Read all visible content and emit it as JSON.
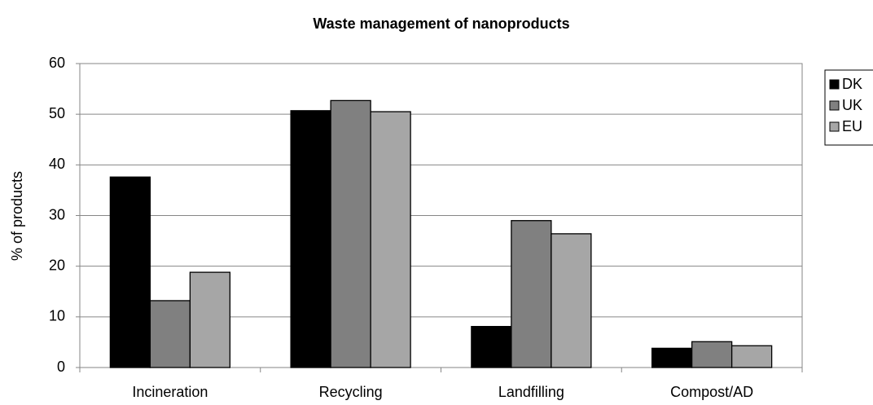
{
  "chart_data": {
    "type": "bar",
    "title": "Waste management of nanoproducts",
    "y_label": "% of products",
    "categories": [
      "Incineration",
      "Recycling",
      "Landfilling",
      "Compost/AD"
    ],
    "series": [
      {
        "name": "DK",
        "color": "#000000",
        "values": [
          37.6,
          50.7,
          8.1,
          3.8
        ]
      },
      {
        "name": "UK",
        "color": "#808080",
        "values": [
          13.2,
          52.7,
          29.0,
          5.1
        ]
      },
      {
        "name": "EU",
        "color": "#a6a6a6",
        "values": [
          18.8,
          50.5,
          26.4,
          4.3
        ]
      }
    ],
    "ylim": [
      0,
      60
    ],
    "yticks": [
      0,
      10,
      20,
      30,
      40,
      50,
      60
    ],
    "grid": true,
    "legend": "right"
  }
}
